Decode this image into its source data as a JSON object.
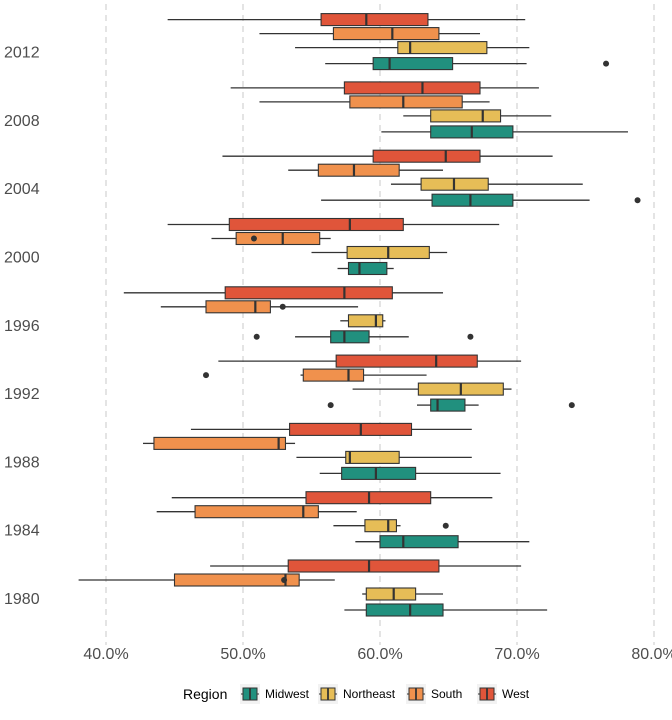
{
  "chart_data": {
    "type": "boxplot",
    "orientation": "horizontal",
    "categories": [
      "1980",
      "1984",
      "1988",
      "1992",
      "1996",
      "2000",
      "2004",
      "2008",
      "2012"
    ],
    "xlim": [
      0.375,
      0.8
    ],
    "x_ticks": [
      {
        "value": 0.4,
        "label": "40.0%"
      },
      {
        "value": 0.5,
        "label": "50.0%"
      },
      {
        "value": 0.6,
        "label": "60.0%"
      },
      {
        "value": 0.7,
        "label": "70.0%"
      },
      {
        "value": 0.8,
        "label": "80.0%"
      }
    ],
    "grid": "vertical-dashed",
    "legend": {
      "title": "Region",
      "position": "bottom",
      "items": [
        {
          "name": "Midwest",
          "color": "#21907e"
        },
        {
          "name": "Northeast",
          "color": "#e6bd57"
        },
        {
          "name": "South",
          "color": "#f0914d"
        },
        {
          "name": "West",
          "color": "#e0553a"
        }
      ]
    },
    "series": [
      {
        "name": "Midwest",
        "color": "#21907e",
        "boxes": [
          {
            "year": "1980",
            "min": 0.574,
            "q1": 0.59,
            "median": 0.622,
            "q3": 0.646,
            "max": 0.722,
            "outliers": []
          },
          {
            "year": "1984",
            "min": 0.582,
            "q1": 0.6,
            "median": 0.617,
            "q3": 0.657,
            "max": 0.709,
            "outliers": []
          },
          {
            "year": "1988",
            "min": 0.556,
            "q1": 0.572,
            "median": 0.597,
            "q3": 0.626,
            "max": 0.688,
            "outliers": []
          },
          {
            "year": "1992",
            "min": 0.627,
            "q1": 0.637,
            "median": 0.642,
            "q3": 0.662,
            "max": 0.672,
            "outliers": [
              0.564,
              0.74
            ]
          },
          {
            "year": "1996",
            "min": 0.538,
            "q1": 0.564,
            "median": 0.574,
            "q3": 0.592,
            "max": 0.621,
            "outliers": [
              0.51,
              0.666
            ]
          },
          {
            "year": "2000",
            "min": 0.569,
            "q1": 0.577,
            "median": 0.585,
            "q3": 0.605,
            "max": 0.61,
            "outliers": []
          },
          {
            "year": "2004",
            "min": 0.557,
            "q1": 0.638,
            "median": 0.666,
            "q3": 0.697,
            "max": 0.753,
            "outliers": [
              0.788
            ]
          },
          {
            "year": "2008",
            "min": 0.601,
            "q1": 0.637,
            "median": 0.667,
            "q3": 0.697,
            "max": 0.781,
            "outliers": []
          },
          {
            "year": "2012",
            "min": 0.56,
            "q1": 0.595,
            "median": 0.607,
            "q3": 0.653,
            "max": 0.707,
            "outliers": [
              0.765
            ]
          }
        ]
      },
      {
        "name": "Northeast",
        "color": "#e6bd57",
        "boxes": [
          {
            "year": "1980",
            "min": 0.587,
            "q1": 0.59,
            "median": 0.61,
            "q3": 0.626,
            "max": 0.646,
            "outliers": []
          },
          {
            "year": "1984",
            "min": 0.566,
            "q1": 0.589,
            "median": 0.606,
            "q3": 0.612,
            "max": 0.615,
            "outliers": [
              0.648
            ]
          },
          {
            "year": "1988",
            "min": 0.539,
            "q1": 0.575,
            "median": 0.578,
            "q3": 0.614,
            "max": 0.667,
            "outliers": []
          },
          {
            "year": "1992",
            "min": 0.58,
            "q1": 0.628,
            "median": 0.659,
            "q3": 0.69,
            "max": 0.696,
            "outliers": []
          },
          {
            "year": "1996",
            "min": 0.571,
            "q1": 0.577,
            "median": 0.597,
            "q3": 0.602,
            "max": 0.604,
            "outliers": []
          },
          {
            "year": "2000",
            "min": 0.55,
            "q1": 0.576,
            "median": 0.606,
            "q3": 0.636,
            "max": 0.649,
            "outliers": []
          },
          {
            "year": "2004",
            "min": 0.608,
            "q1": 0.63,
            "median": 0.654,
            "q3": 0.679,
            "max": 0.748,
            "outliers": []
          },
          {
            "year": "2008",
            "min": 0.617,
            "q1": 0.637,
            "median": 0.675,
            "q3": 0.688,
            "max": 0.725,
            "outliers": []
          },
          {
            "year": "2012",
            "min": 0.538,
            "q1": 0.613,
            "median": 0.622,
            "q3": 0.678,
            "max": 0.709,
            "outliers": []
          }
        ]
      },
      {
        "name": "South",
        "color": "#f0914d",
        "boxes": [
          {
            "year": "1980",
            "min": 0.38,
            "q1": 0.45,
            "median": 0.531,
            "q3": 0.541,
            "max": 0.567,
            "outliers": [
              0.53
            ]
          },
          {
            "year": "1984",
            "min": 0.437,
            "q1": 0.465,
            "median": 0.544,
            "q3": 0.555,
            "max": 0.583,
            "outliers": []
          },
          {
            "year": "1988",
            "min": 0.427,
            "q1": 0.435,
            "median": 0.526,
            "q3": 0.531,
            "max": 0.538,
            "outliers": []
          },
          {
            "year": "1992",
            "min": 0.542,
            "q1": 0.544,
            "median": 0.577,
            "q3": 0.588,
            "max": 0.634,
            "outliers": [
              0.473
            ]
          },
          {
            "year": "1996",
            "min": 0.44,
            "q1": 0.473,
            "median": 0.509,
            "q3": 0.52,
            "max": 0.584,
            "outliers": [
              0.529
            ]
          },
          {
            "year": "2000",
            "min": 0.477,
            "q1": 0.495,
            "median": 0.529,
            "q3": 0.556,
            "max": 0.564,
            "outliers": [
              0.508
            ]
          },
          {
            "year": "2004",
            "min": 0.533,
            "q1": 0.555,
            "median": 0.581,
            "q3": 0.614,
            "max": 0.646,
            "outliers": []
          },
          {
            "year": "2008",
            "min": 0.512,
            "q1": 0.578,
            "median": 0.617,
            "q3": 0.66,
            "max": 0.68,
            "outliers": []
          },
          {
            "year": "2012",
            "min": 0.512,
            "q1": 0.566,
            "median": 0.609,
            "q3": 0.643,
            "max": 0.673,
            "outliers": []
          }
        ]
      },
      {
        "name": "West",
        "color": "#e0553a",
        "boxes": [
          {
            "year": "1980",
            "min": 0.476,
            "q1": 0.533,
            "median": 0.592,
            "q3": 0.643,
            "max": 0.703,
            "outliers": []
          },
          {
            "year": "1984",
            "min": 0.448,
            "q1": 0.546,
            "median": 0.592,
            "q3": 0.637,
            "max": 0.682,
            "outliers": []
          },
          {
            "year": "1988",
            "min": 0.462,
            "q1": 0.534,
            "median": 0.586,
            "q3": 0.623,
            "max": 0.667,
            "outliers": []
          },
          {
            "year": "1992",
            "min": 0.482,
            "q1": 0.568,
            "median": 0.641,
            "q3": 0.671,
            "max": 0.703,
            "outliers": []
          },
          {
            "year": "1996",
            "min": 0.413,
            "q1": 0.487,
            "median": 0.574,
            "q3": 0.609,
            "max": 0.646,
            "outliers": []
          },
          {
            "year": "2000",
            "min": 0.445,
            "q1": 0.49,
            "median": 0.578,
            "q3": 0.617,
            "max": 0.687,
            "outliers": []
          },
          {
            "year": "2004",
            "min": 0.485,
            "q1": 0.595,
            "median": 0.648,
            "q3": 0.673,
            "max": 0.726,
            "outliers": []
          },
          {
            "year": "2008",
            "min": 0.491,
            "q1": 0.574,
            "median": 0.631,
            "q3": 0.673,
            "max": 0.716,
            "outliers": []
          },
          {
            "year": "2012",
            "min": 0.445,
            "q1": 0.557,
            "median": 0.59,
            "q3": 0.635,
            "max": 0.706,
            "outliers": []
          }
        ]
      }
    ]
  }
}
